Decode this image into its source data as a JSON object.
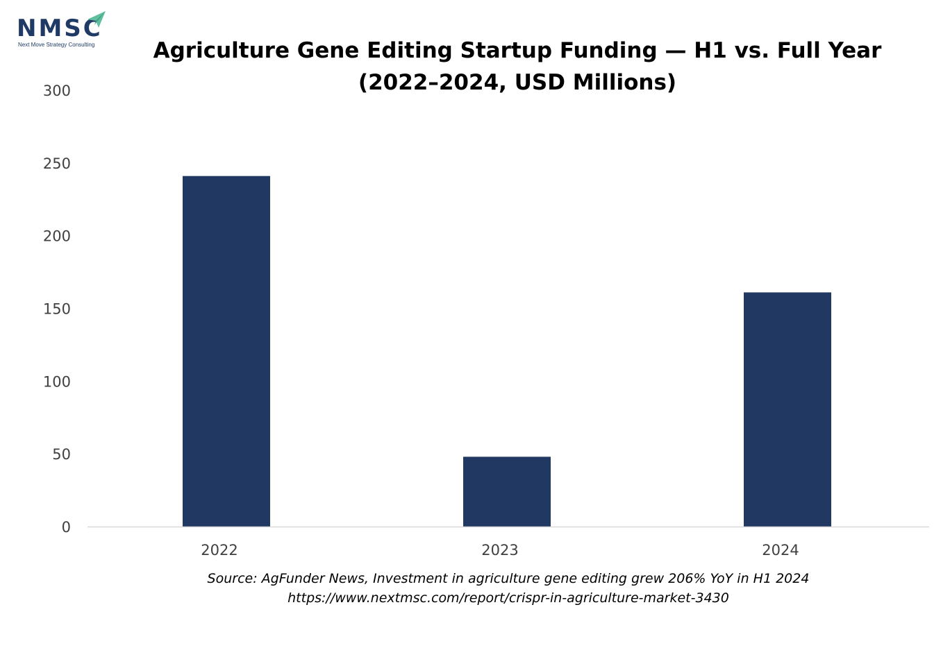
{
  "logo": {
    "name": "NMSC",
    "tagline": "Next Move Strategy Consulting",
    "colors": {
      "text": "#1f3a64",
      "arrow": "#5fbf9f"
    }
  },
  "chart_data": {
    "type": "bar",
    "title": "Agriculture Gene Editing Startup Funding — H1 vs. Full Year (2022–2024, USD Millions)",
    "categories": [
      "2022",
      "2023",
      "2024"
    ],
    "values": [
      241,
      48,
      161
    ],
    "xlabel": "",
    "ylabel": "",
    "ylim": [
      0,
      300
    ],
    "yticks": [
      0,
      50,
      100,
      150,
      200,
      250,
      300
    ],
    "grid": false,
    "legend": "none",
    "colors": {
      "bar": "#213862",
      "axis": "#d9d9d9",
      "tick_label": "#404040"
    }
  },
  "source": {
    "line1": "Source: AgFunder News, Investment in agriculture gene editing grew 206% YoY in H1 2024",
    "line2": "https://www.nextmsc.com/report/crispr-in-agriculture-market-3430"
  }
}
